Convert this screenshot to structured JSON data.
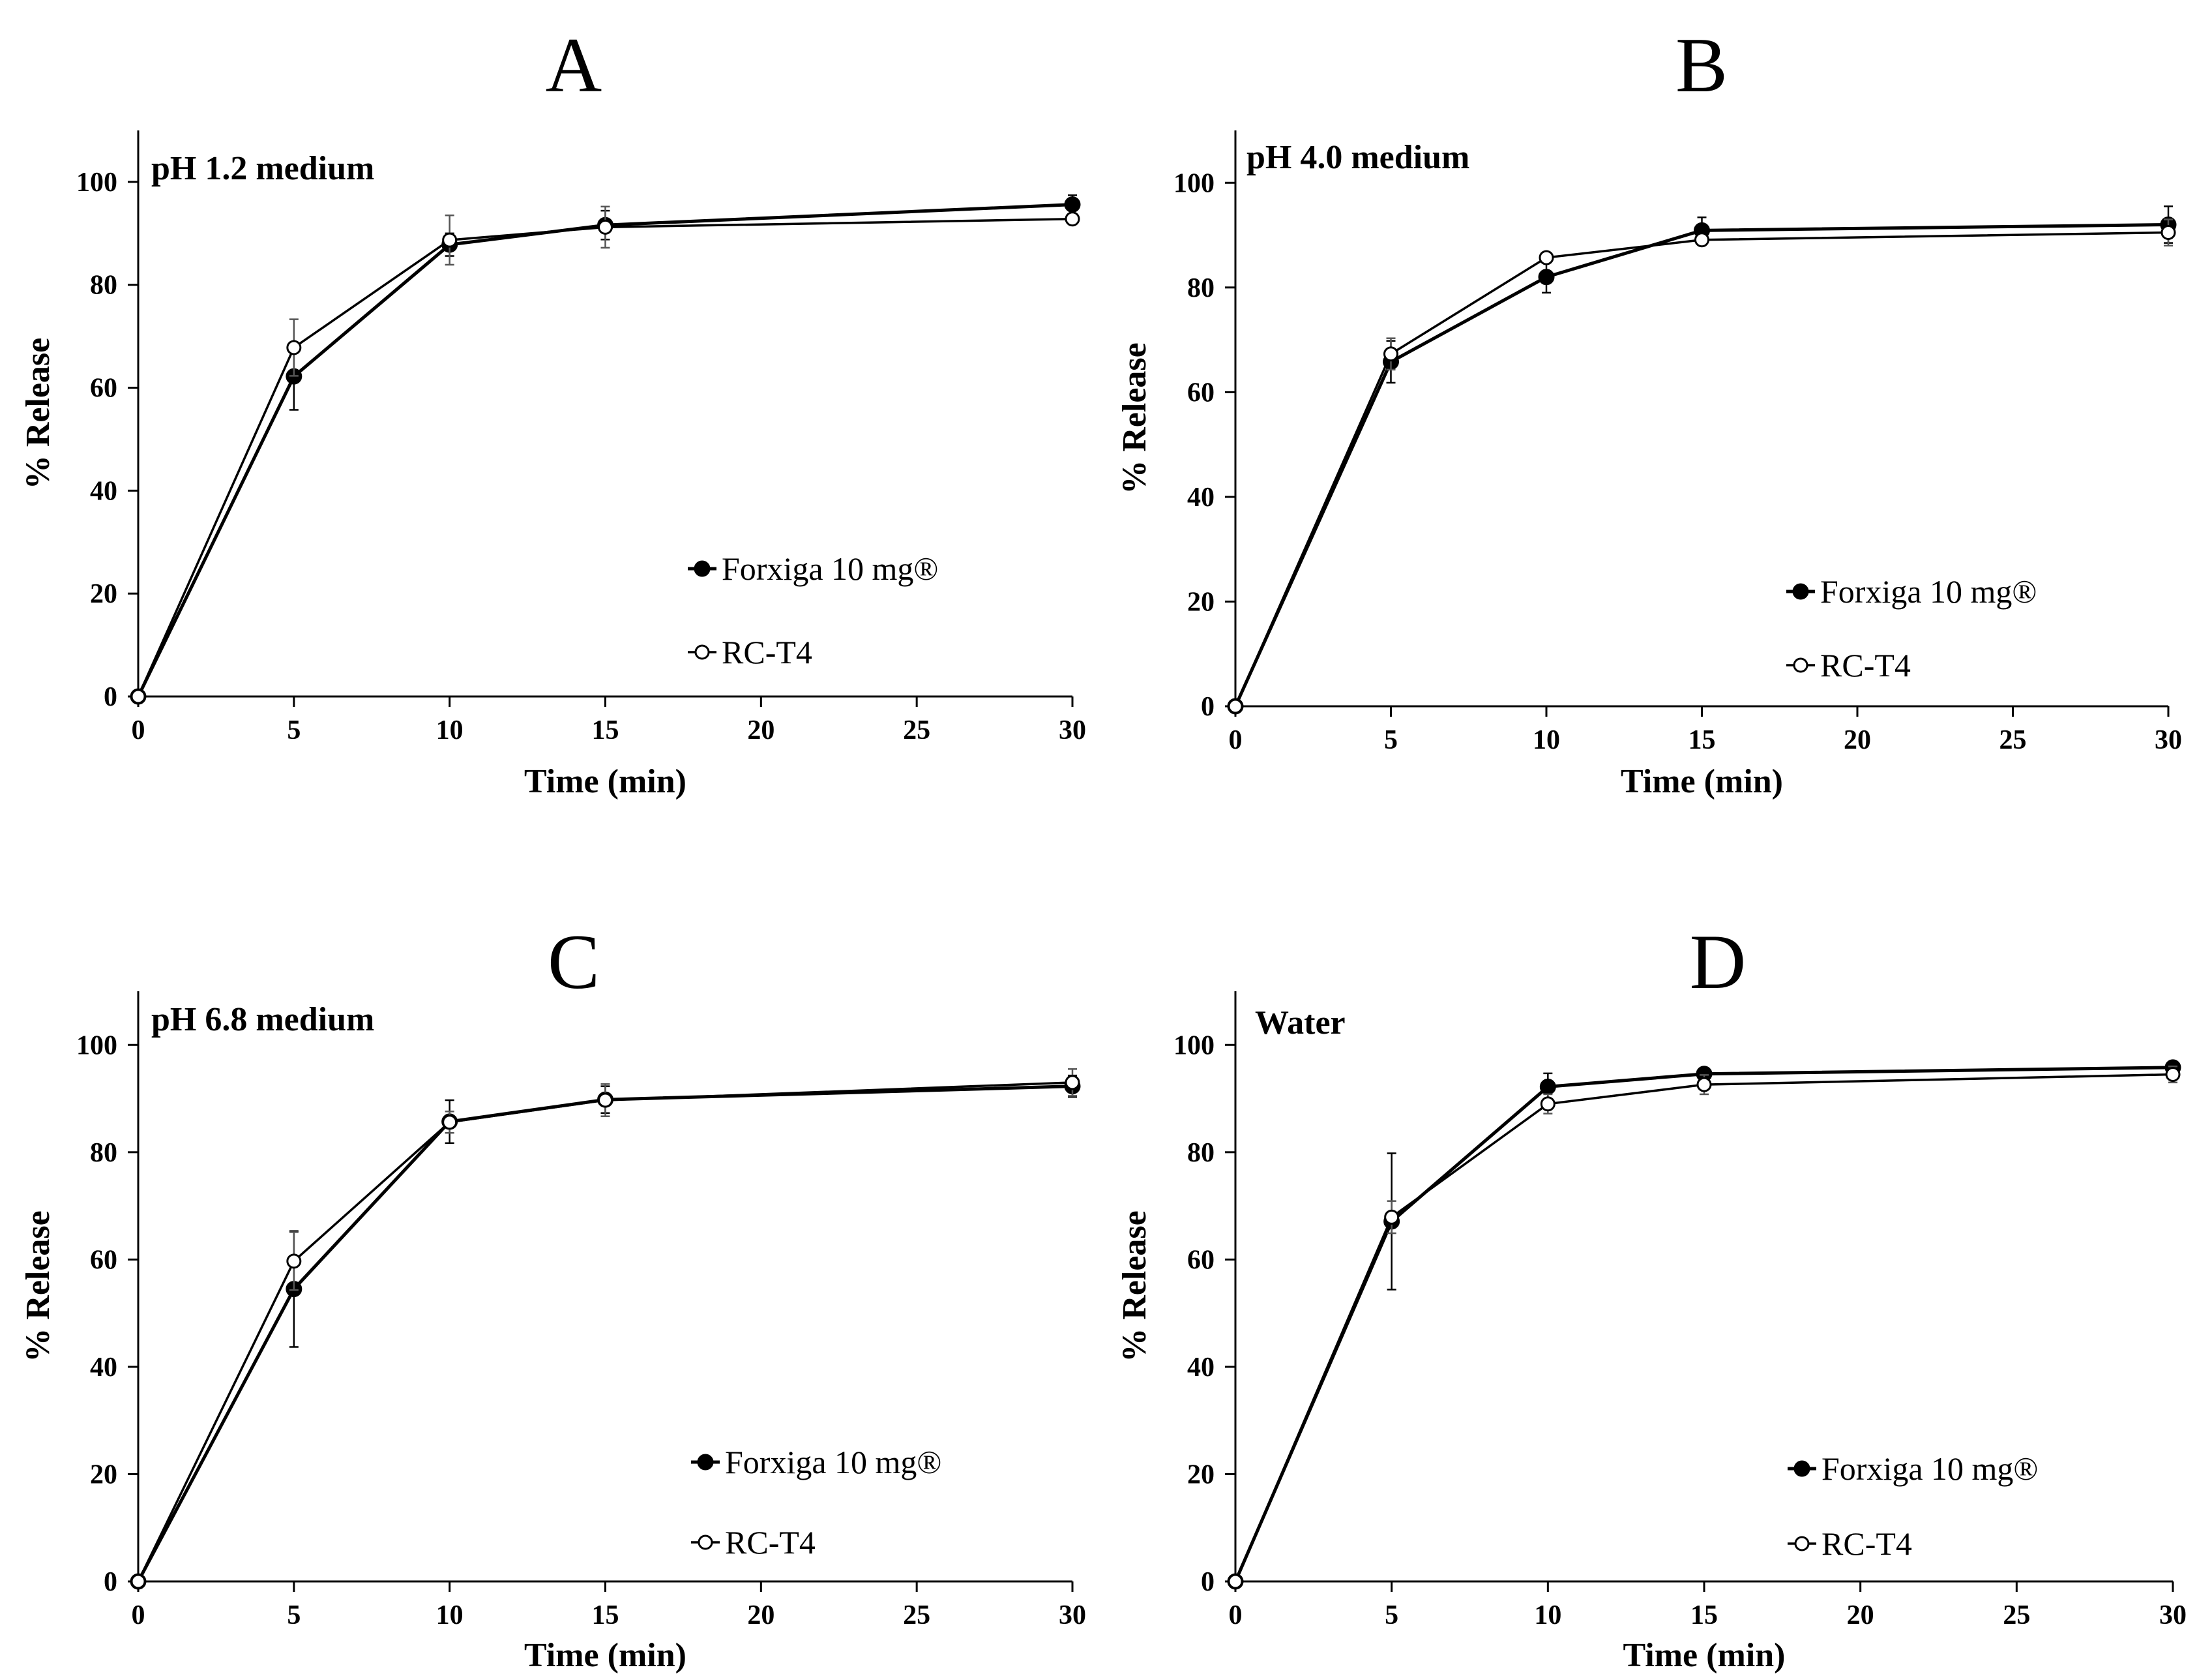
{
  "chart_data": [
    {
      "type": "line",
      "panel_label": "A",
      "subtitle": "pH 1.2 medium",
      "xlabel": "Time (min)",
      "ylabel": "% Release",
      "xlim": [
        0,
        30
      ],
      "ylim": [
        0,
        110
      ],
      "x_ticks": [
        0,
        5,
        10,
        15,
        20,
        25,
        30
      ],
      "y_ticks": [
        0,
        20,
        40,
        60,
        80,
        100
      ],
      "grid": false,
      "legend_position": "bottom-right",
      "x": [
        0,
        5,
        10,
        15,
        30
      ],
      "series": [
        {
          "name": "Forxiga 10 mg®",
          "marker": "filled-circle",
          "values": [
            0,
            62.2,
            87.8,
            91.6,
            95.6
          ],
          "errors": [
            0,
            6.5,
            2.2,
            2.8,
            1.8
          ]
        },
        {
          "name": "RC-T4",
          "marker": "open-circle",
          "values": [
            0,
            67.8,
            88.7,
            91.2,
            92.8
          ],
          "errors": [
            0,
            5.5,
            4.8,
            4.0,
            1.0
          ]
        }
      ]
    },
    {
      "type": "line",
      "panel_label": "B",
      "subtitle": "pH 4.0 medium",
      "xlabel": "Time (min)",
      "ylabel": "% Release",
      "xlim": [
        0,
        30
      ],
      "ylim": [
        0,
        110
      ],
      "x_ticks": [
        0,
        5,
        10,
        15,
        20,
        25,
        30
      ],
      "y_ticks": [
        0,
        20,
        40,
        60,
        80,
        100
      ],
      "grid": false,
      "legend_position": "bottom-right",
      "x": [
        0,
        5,
        10,
        15,
        30
      ],
      "series": [
        {
          "name": "Forxiga 10 mg®",
          "marker": "filled-circle",
          "values": [
            0,
            65.8,
            82.0,
            90.9,
            92.0
          ],
          "errors": [
            0,
            4.0,
            3.0,
            2.5,
            3.5
          ]
        },
        {
          "name": "RC-T4",
          "marker": "open-circle",
          "values": [
            0,
            67.3,
            85.7,
            89.1,
            90.5
          ],
          "errors": [
            0,
            3.0,
            1.0,
            1.0,
            2.5
          ]
        }
      ]
    },
    {
      "type": "line",
      "panel_label": "C",
      "subtitle": "pH 6.8 medium",
      "xlabel": "Time (min)",
      "ylabel": "% Release",
      "xlim": [
        0,
        30
      ],
      "ylim": [
        0,
        110
      ],
      "x_ticks": [
        0,
        5,
        10,
        15,
        20,
        25,
        30
      ],
      "y_ticks": [
        0,
        20,
        40,
        60,
        80,
        100
      ],
      "grid": false,
      "legend_position": "bottom-right",
      "x": [
        0,
        5,
        10,
        15,
        30
      ],
      "series": [
        {
          "name": "Forxiga 10 mg®",
          "marker": "filled-circle",
          "values": [
            0,
            54.5,
            85.7,
            89.8,
            92.3
          ],
          "errors": [
            0,
            10.8,
            4.0,
            2.5,
            2.0
          ]
        },
        {
          "name": "RC-T4",
          "marker": "open-circle",
          "values": [
            0,
            59.7,
            85.6,
            89.7,
            93.0
          ],
          "errors": [
            0,
            5.4,
            2.0,
            3.0,
            2.5
          ]
        }
      ]
    },
    {
      "type": "line",
      "panel_label": "D",
      "subtitle": "Water",
      "xlabel": "Time (min)",
      "ylabel": "% Release",
      "xlim": [
        0,
        30
      ],
      "ylim": [
        0,
        110
      ],
      "x_ticks": [
        0,
        5,
        10,
        15,
        20,
        25,
        30
      ],
      "y_ticks": [
        0,
        20,
        40,
        60,
        80,
        100
      ],
      "grid": false,
      "legend_position": "bottom-right",
      "x": [
        0,
        5,
        10,
        15,
        30
      ],
      "series": [
        {
          "name": "Forxiga 10 mg®",
          "marker": "filled-circle",
          "values": [
            0,
            67.1,
            92.2,
            94.6,
            95.8
          ],
          "errors": [
            0,
            12.7,
            2.5,
            1.0,
            0.8
          ]
        },
        {
          "name": "RC-T4",
          "marker": "open-circle",
          "values": [
            0,
            67.9,
            89.0,
            92.6,
            94.5
          ],
          "errors": [
            0,
            3.0,
            1.8,
            1.8,
            1.5
          ]
        }
      ]
    }
  ]
}
